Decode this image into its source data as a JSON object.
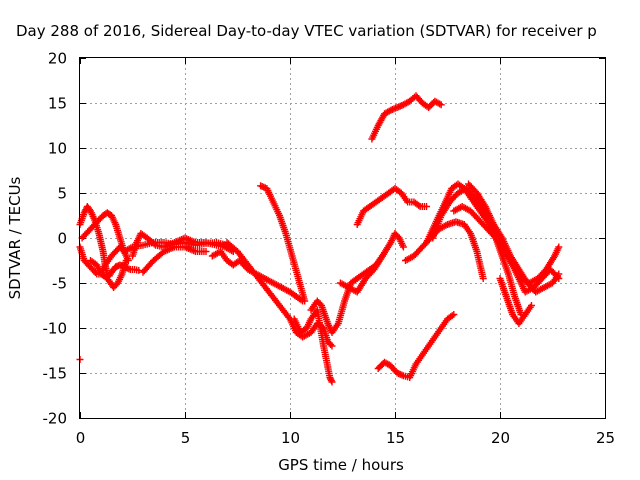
{
  "chart_data": {
    "type": "scatter",
    "title": "Day 288 of 2016, Sidereal Day-to-day VTEC variation (SDTVAR) for receiver p",
    "xlabel": "GPS time / hours",
    "ylabel": "SDTVAR / TECUs",
    "xlim": [
      0,
      25
    ],
    "ylim": [
      -20,
      20
    ],
    "xticks": [
      "0",
      "5",
      "10",
      "15",
      "20",
      "25"
    ],
    "yticks": [
      "20",
      "15",
      "10",
      "5",
      "0",
      "-5",
      "-10",
      "-15",
      "-20"
    ],
    "grid": true,
    "marker": "plus",
    "color": "#ff0000",
    "series": [
      {
        "x": [
          0.0,
          0.2,
          0.35,
          0.5,
          0.7,
          0.9,
          1.1,
          1.2,
          1.3,
          1.4,
          1.5,
          1.7,
          1.9,
          2.1,
          2.4,
          2.6,
          2.8
        ],
        "y": [
          1.5,
          2.8,
          3.5,
          3.0,
          2.0,
          0.5,
          -1.5,
          -3.0,
          -4.0,
          -4.2,
          -3.8,
          -3.2,
          -3.0,
          -3.2,
          -3.5,
          -3.5,
          -3.6
        ]
      },
      {
        "x": [
          0.0,
          0.2,
          0.4,
          0.6,
          0.8,
          1.0,
          1.2,
          1.4,
          1.6,
          1.8,
          2.0,
          2.2
        ],
        "y": [
          -1.0,
          -2.5,
          -3.0,
          -3.5,
          -4.0,
          -4.0,
          -4.3,
          -4.8,
          -5.5,
          -5.0,
          -4.0,
          -2.5
        ]
      },
      {
        "x": [
          0.1,
          0.3,
          0.5,
          0.7,
          0.9,
          1.1,
          1.3,
          1.5,
          1.7,
          1.9,
          2.1,
          2.3
        ],
        "y": [
          0.0,
          0.5,
          1.0,
          1.5,
          2.0,
          2.5,
          2.8,
          2.5,
          1.5,
          0.0,
          -1.5,
          -2.5
        ]
      },
      {
        "x": [
          0.5,
          0.8,
          1.0,
          1.2,
          1.5,
          1.7,
          1.9,
          2.1,
          2.5,
          3.0,
          3.5,
          4.0,
          4.5,
          5.0,
          5.5,
          6.0,
          6.5,
          7.0
        ],
        "y": [
          -2.5,
          -3.0,
          -4.0,
          -3.0,
          -2.0,
          -1.5,
          -1.0,
          -1.5,
          -1.0,
          -0.8,
          -0.5,
          -0.5,
          -0.7,
          -0.5,
          -0.8,
          -0.6,
          -0.5,
          -0.8
        ]
      },
      {
        "x": [
          2.5,
          2.7,
          2.9,
          3.2,
          3.6,
          4.0,
          4.5,
          5.0,
          5.5,
          6.0,
          6.5,
          6.9,
          7.3
        ],
        "y": [
          -2.0,
          -0.5,
          0.5,
          0.0,
          -0.8,
          -1.0,
          -0.5,
          0.0,
          -0.5,
          -0.5,
          -0.8,
          -1.0,
          -1.5
        ]
      },
      {
        "x": [
          3.0,
          3.5,
          4.0,
          4.5,
          5.0,
          5.5,
          6.0
        ],
        "y": [
          -3.8,
          -2.5,
          -1.5,
          -1.0,
          -1.0,
          -1.5,
          -1.5
        ]
      },
      {
        "x": [
          6.3,
          6.7,
          7.0,
          7.3,
          7.6,
          8.0,
          8.4,
          8.8,
          9.2,
          9.6,
          10.0,
          10.3,
          10.6
        ],
        "y": [
          -2.0,
          -1.5,
          -2.5,
          -3.0,
          -2.5,
          -3.5,
          -4.0,
          -4.5,
          -5.0,
          -5.5,
          -6.0,
          -6.5,
          -7.0
        ]
      },
      {
        "x": [
          7.0,
          7.5,
          8.0,
          8.5,
          9.0,
          9.5,
          10.0,
          10.3,
          10.6,
          11.0,
          11.3,
          11.6,
          11.8,
          12.0
        ],
        "y": [
          -0.5,
          -1.5,
          -3.0,
          -4.5,
          -6.0,
          -7.5,
          -9.0,
          -10.5,
          -11.0,
          -10.5,
          -9.5,
          -10.0,
          -11.5,
          -12.0
        ]
      },
      {
        "x": [
          8.6,
          8.9,
          9.2,
          9.5,
          9.8,
          10.1,
          10.4,
          10.7
        ],
        "y": [
          5.8,
          5.5,
          4.0,
          2.5,
          0.5,
          -2.0,
          -4.5,
          -7.0
        ]
      },
      {
        "x": [
          10.2,
          10.5,
          10.8,
          11.0,
          11.3,
          11.6,
          11.9,
          12.0
        ],
        "y": [
          -9.0,
          -10.5,
          -10.0,
          -9.0,
          -8.0,
          -12.0,
          -15.5,
          -16.0
        ]
      },
      {
        "x": [
          11.0,
          11.3,
          11.5,
          11.8,
          12.0,
          12.3,
          12.6,
          12.9,
          13.2,
          13.5,
          13.8,
          14.1,
          14.4
        ],
        "y": [
          -8.0,
          -7.0,
          -7.5,
          -9.5,
          -10.5,
          -9.5,
          -7.0,
          -5.0,
          -4.5,
          -4.0,
          -3.5,
          -3.0,
          -2.0
        ]
      },
      {
        "x": [
          12.4,
          12.8,
          13.2,
          13.6,
          14.0,
          14.4,
          14.8,
          15.0,
          15.2,
          15.4
        ],
        "y": [
          -5.0,
          -5.5,
          -6.0,
          -4.5,
          -3.5,
          -2.0,
          -0.5,
          0.5,
          0.0,
          -1.0
        ]
      },
      {
        "x": [
          13.2,
          13.5,
          13.8,
          14.1,
          14.4,
          14.7,
          15.0,
          15.3,
          15.6,
          15.9,
          16.2,
          16.5
        ],
        "y": [
          1.5,
          3.0,
          3.5,
          4.0,
          4.5,
          5.0,
          5.5,
          5.0,
          4.0,
          4.0,
          3.5,
          3.5
        ]
      },
      {
        "x": [
          13.9,
          14.2,
          14.5,
          14.8,
          15.1,
          15.4,
          15.7,
          16.0,
          16.3,
          16.6,
          16.9,
          17.2
        ],
        "y": [
          11.0,
          12.5,
          13.8,
          14.2,
          14.5,
          14.8,
          15.2,
          15.8,
          15.0,
          14.5,
          15.2,
          14.8
        ]
      },
      {
        "x": [
          14.2,
          14.5,
          14.8,
          15.1,
          15.4,
          15.7,
          16.0,
          16.3,
          16.6,
          16.9,
          17.2,
          17.5,
          17.8
        ],
        "y": [
          -14.5,
          -13.8,
          -14.2,
          -15.0,
          -15.3,
          -15.5,
          -14.0,
          -13.0,
          -12.0,
          -11.0,
          -10.0,
          -9.0,
          -8.5
        ]
      },
      {
        "x": [
          15.5,
          15.9,
          16.3,
          16.7,
          17.1,
          17.5,
          17.9,
          18.3,
          18.6,
          18.9,
          19.2
        ],
        "y": [
          -2.5,
          -2.0,
          -1.0,
          0.0,
          1.0,
          1.5,
          1.8,
          1.5,
          0.5,
          -1.5,
          -4.5
        ]
      },
      {
        "x": [
          16.5,
          16.8,
          17.1,
          17.4,
          17.7,
          18.0,
          18.3,
          18.6,
          18.9,
          19.2,
          19.5,
          19.8,
          20.1,
          20.4,
          20.7,
          21.0
        ],
        "y": [
          -0.5,
          1.0,
          2.5,
          4.0,
          5.5,
          6.0,
          5.5,
          4.5,
          3.5,
          2.5,
          1.5,
          0.0,
          -2.0,
          -4.0,
          -6.5,
          -8.5
        ]
      },
      {
        "x": [
          16.8,
          17.2,
          17.6,
          18.0,
          18.4,
          18.8,
          19.2,
          19.6,
          20.0,
          20.4,
          20.8,
          21.2,
          21.6,
          22.0,
          22.4,
          22.8
        ],
        "y": [
          0.0,
          2.5,
          4.0,
          5.0,
          5.5,
          4.5,
          3.0,
          1.5,
          0.0,
          -2.0,
          -4.0,
          -6.0,
          -5.5,
          -4.5,
          -3.5,
          -4.5
        ]
      },
      {
        "x": [
          17.8,
          18.2,
          18.6,
          19.0,
          19.4,
          19.8,
          20.2,
          20.6,
          21.0,
          21.4,
          21.8,
          22.2,
          22.6,
          22.8
        ],
        "y": [
          3.0,
          3.5,
          3.0,
          2.0,
          1.0,
          0.0,
          -1.5,
          -3.0,
          -4.5,
          -5.0,
          -4.5,
          -3.5,
          -2.0,
          -1.0
        ]
      },
      {
        "x": [
          18.5,
          18.9,
          19.3,
          19.7,
          20.1,
          20.5,
          20.9,
          21.3,
          21.7,
          22.1,
          22.5,
          22.8
        ],
        "y": [
          6.0,
          5.0,
          3.5,
          1.5,
          0.0,
          -2.0,
          -3.5,
          -5.0,
          -6.0,
          -5.5,
          -5.0,
          -4.0
        ]
      },
      {
        "x": [
          20.0,
          20.3,
          20.6,
          20.9,
          21.2,
          21.5
        ],
        "y": [
          -4.5,
          -6.5,
          -8.5,
          -9.5,
          -8.5,
          -7.5
        ]
      },
      {
        "x": [
          0.0
        ],
        "y": [
          -13.5
        ]
      }
    ]
  }
}
